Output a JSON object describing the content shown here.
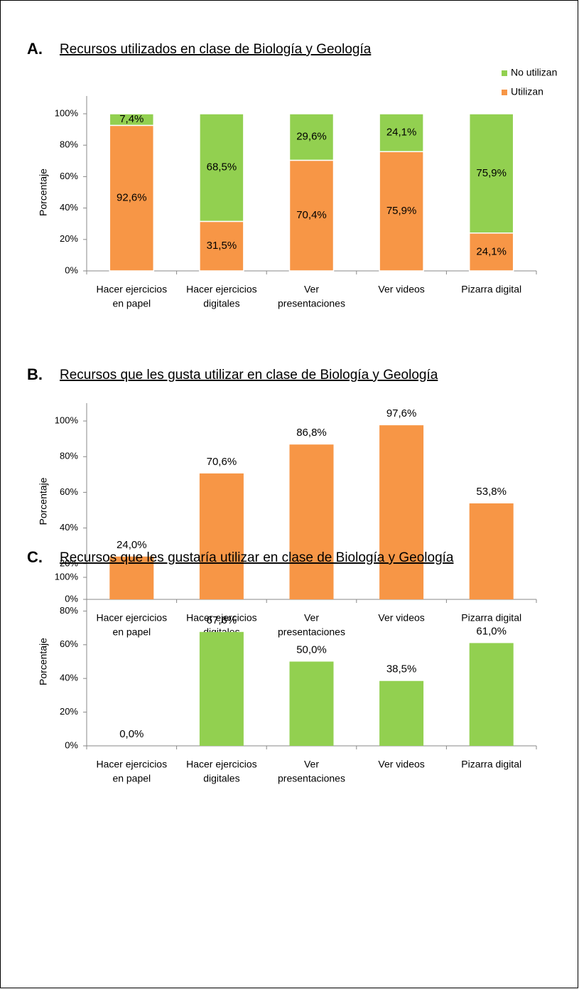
{
  "chart_data": [
    {
      "type": "bar",
      "stacked": true,
      "panel": "A.",
      "title": "Recursos utilizados en clase de Biología y Geología",
      "ylabel": "Porcentaje",
      "legend": "top-right",
      "categories": [
        [
          "Hacer ejercicios",
          "en papel"
        ],
        [
          "Hacer ejercicios",
          "digitales"
        ],
        [
          "Ver",
          "presentaciones"
        ],
        [
          "Ver videos"
        ],
        [
          "Pizarra digital"
        ]
      ],
      "series": [
        {
          "name": "Utilizan",
          "color": "#f79646",
          "values": [
            92.6,
            31.5,
            70.4,
            75.9,
            24.1
          ],
          "value_labels": [
            "92,6%",
            "31,5%",
            "70,4%",
            "75,9%",
            "24,1%"
          ]
        },
        {
          "name": "No utilizan",
          "color": "#92d050",
          "values": [
            7.4,
            68.5,
            29.6,
            24.1,
            75.9
          ],
          "value_labels": [
            "7,4%",
            "68,5%",
            "29,6%",
            "24,1%",
            "75,9%"
          ]
        }
      ],
      "ylim": [
        0,
        100
      ],
      "yticks": [
        {
          "value": 0,
          "label": "0%"
        },
        {
          "value": 20,
          "label": "20%"
        },
        {
          "value": 40,
          "label": "40%"
        },
        {
          "value": 60,
          "label": "60%"
        },
        {
          "value": 80,
          "label": "80%"
        },
        {
          "value": 100,
          "label": "100%"
        }
      ]
    },
    {
      "type": "bar",
      "panel": "B.",
      "title": "Recursos que les gusta utilizar en clase de Biología y Geología",
      "ylabel": "Porcentaje",
      "categories": [
        [
          "Hacer ejercicios",
          "en papel"
        ],
        [
          "Hacer ejercicios",
          "digitales"
        ],
        [
          "Ver",
          "presentaciones"
        ],
        [
          "Ver videos"
        ],
        [
          "Pizarra digital"
        ]
      ],
      "values": [
        24.0,
        70.6,
        86.8,
        97.6,
        53.8
      ],
      "value_labels": [
        "24,0%",
        "70,6%",
        "86,8%",
        "97,6%",
        "53,8%"
      ],
      "color": "#f79646",
      "ylim": [
        0,
        110
      ],
      "yticks": [
        {
          "value": 0,
          "label": "0%"
        },
        {
          "value": 20,
          "label": "20%"
        },
        {
          "value": 40,
          "label": "40%"
        },
        {
          "value": 60,
          "label": "60%"
        },
        {
          "value": 80,
          "label": "80%"
        },
        {
          "value": 100,
          "label": "100%"
        }
      ]
    },
    {
      "type": "bar",
      "panel": "C.",
      "title": "Recursos que les gustaría utilizar en clase de Biología y Geología",
      "ylabel": "Porcentaje",
      "categories": [
        [
          "Hacer ejercicios",
          "en papel"
        ],
        [
          "Hacer ejercicios",
          "digitales"
        ],
        [
          "Ver",
          "presentaciones"
        ],
        [
          "Ver videos"
        ],
        [
          "Pizarra digital"
        ]
      ],
      "values": [
        0.0,
        67.6,
        50.0,
        38.5,
        61.0
      ],
      "value_labels": [
        "0,0%",
        "67,6%",
        "50,0%",
        "38,5%",
        "61,0%"
      ],
      "color": "#92d050",
      "ylim": [
        0,
        100
      ],
      "yticks": [
        {
          "value": 0,
          "label": "0%"
        },
        {
          "value": 20,
          "label": "20%"
        },
        {
          "value": 40,
          "label": "40%"
        },
        {
          "value": 60,
          "label": "60%"
        },
        {
          "value": 80,
          "label": "80%"
        },
        {
          "value": 100,
          "label": "100%"
        }
      ]
    }
  ]
}
